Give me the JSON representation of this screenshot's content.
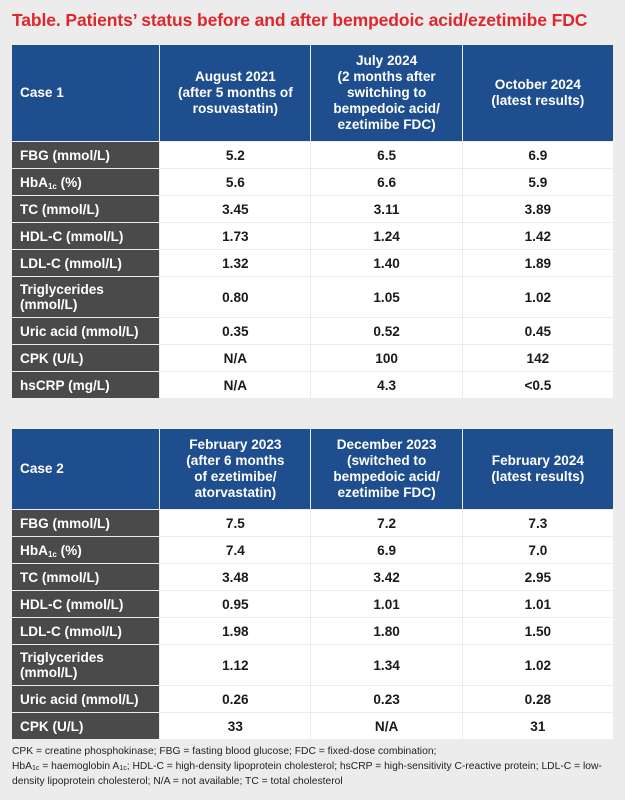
{
  "title": "Table. Patients’ status before and after bempedoic acid/ezetimibe FDC",
  "case1": {
    "label": "Case 1",
    "columns": [
      "August 2021\n(after 5 months of\nrosuvastatin)",
      "July 2024\n(2 months after\nswitching to\nbempedoic acid/\nezetimibe FDC)",
      "October 2024\n(latest results)"
    ],
    "rows": [
      {
        "label": "FBG (mmol/L)",
        "values": [
          "5.2",
          "6.5",
          "6.9"
        ]
      },
      {
        "label": "HbA",
        "sub": "1c",
        "label_suffix": " (%)",
        "values": [
          "5.6",
          "6.6",
          "5.9"
        ]
      },
      {
        "label": "TC (mmol/L)",
        "values": [
          "3.45",
          "3.11",
          "3.89"
        ]
      },
      {
        "label": "HDL-C (mmol/L)",
        "values": [
          "1.73",
          "1.24",
          "1.42"
        ]
      },
      {
        "label": "LDL-C (mmol/L)",
        "values": [
          "1.32",
          "1.40",
          "1.89"
        ]
      },
      {
        "label": "Triglycerides\n(mmol/L)",
        "values": [
          "0.80",
          "1.05",
          "1.02"
        ]
      },
      {
        "label": "Uric acid (mmol/L)",
        "values": [
          "0.35",
          "0.52",
          "0.45"
        ]
      },
      {
        "label": "CPK (U/L)",
        "values": [
          "N/A",
          "100",
          "142"
        ]
      },
      {
        "label": "hsCRP (mg/L)",
        "values": [
          "N/A",
          "4.3",
          "<0.5"
        ]
      }
    ]
  },
  "case2": {
    "label": "Case 2",
    "columns": [
      "February 2023\n(after 6 months\nof ezetimibe/\natorvastatin)",
      "December 2023\n(switched to\nbempedoic acid/\nezetimibe FDC)",
      "February 2024\n(latest results)"
    ],
    "rows": [
      {
        "label": "FBG (mmol/L)",
        "values": [
          "7.5",
          "7.2",
          "7.3"
        ]
      },
      {
        "label": "HbA",
        "sub": "1c",
        "label_suffix": " (%)",
        "values": [
          "7.4",
          "6.9",
          "7.0"
        ]
      },
      {
        "label": "TC (mmol/L)",
        "values": [
          "3.48",
          "3.42",
          "2.95"
        ]
      },
      {
        "label": "HDL-C (mmol/L)",
        "values": [
          "0.95",
          "1.01",
          "1.01"
        ]
      },
      {
        "label": "LDL-C (mmol/L)",
        "values": [
          "1.98",
          "1.80",
          "1.50"
        ]
      },
      {
        "label": "Triglycerides\n(mmol/L)",
        "values": [
          "1.12",
          "1.34",
          "1.02"
        ]
      },
      {
        "label": "Uric acid (mmol/L)",
        "values": [
          "0.26",
          "0.23",
          "0.28"
        ]
      },
      {
        "label": "CPK (U/L)",
        "values": [
          "33",
          "N/A",
          "31"
        ]
      }
    ]
  },
  "footnote": {
    "part1": "CPK = creatine phosphokinase; FBG = fasting blood glucose; FDC = fixed-dose combination;",
    "hba": "HbA",
    "hba_sub": "1c",
    "part2": " = haemoglobin A",
    "part2_sub": "1c",
    "part3": "; HDL-C = high-density lipoprotein cholesterol; hsCRP = high-sensitivity C-reactive protein; LDL-C = low-density lipoprotein cholesterol; N/A = not available; TC = total cholesterol"
  },
  "colors": {
    "title_red": "#e0262a",
    "header_blue": "#1f4e8f",
    "label_gray": "#4a4a4a",
    "cell_white": "#ffffff",
    "background": "#ececec"
  }
}
